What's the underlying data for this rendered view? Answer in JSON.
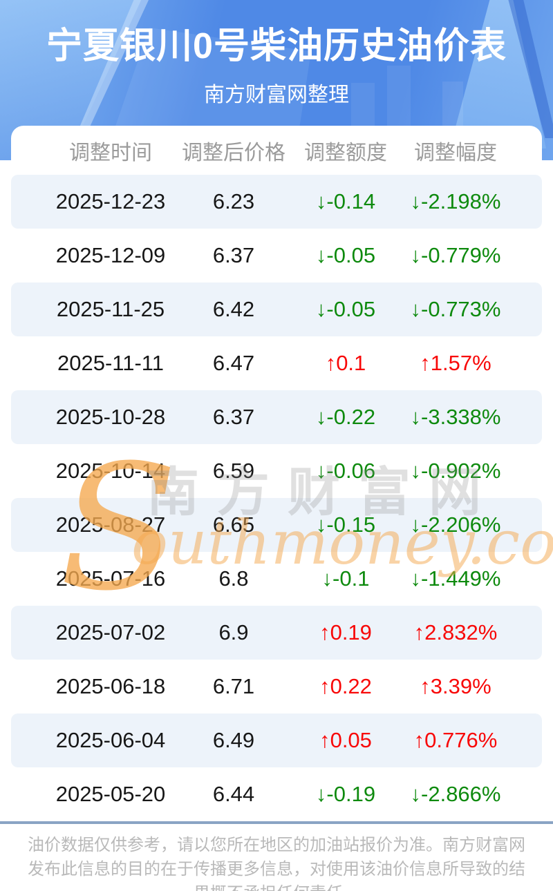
{
  "header": {
    "title": "宁夏银川0号柴油历史油价表",
    "subtitle": "南方财富网整理"
  },
  "table": {
    "columns": [
      "调整时间",
      "调整后价格",
      "调整额度",
      "调整幅度"
    ],
    "rows": [
      {
        "date": "2025-12-23",
        "price": "6.23",
        "amount": "-0.14",
        "percent": "-2.198%",
        "direction": "down"
      },
      {
        "date": "2025-12-09",
        "price": "6.37",
        "amount": "-0.05",
        "percent": "-0.779%",
        "direction": "down"
      },
      {
        "date": "2025-11-25",
        "price": "6.42",
        "amount": "-0.05",
        "percent": "-0.773%",
        "direction": "down"
      },
      {
        "date": "2025-11-11",
        "price": "6.47",
        "amount": "0.1",
        "percent": "1.57%",
        "direction": "up"
      },
      {
        "date": "2025-10-28",
        "price": "6.37",
        "amount": "-0.22",
        "percent": "-3.338%",
        "direction": "down"
      },
      {
        "date": "2025-10-14",
        "price": "6.59",
        "amount": "-0.06",
        "percent": "-0.902%",
        "direction": "down"
      },
      {
        "date": "2025-08-27",
        "price": "6.65",
        "amount": "-0.15",
        "percent": "-2.206%",
        "direction": "down"
      },
      {
        "date": "2025-07-16",
        "price": "6.8",
        "amount": "-0.1",
        "percent": "-1.449%",
        "direction": "down"
      },
      {
        "date": "2025-07-02",
        "price": "6.9",
        "amount": "0.19",
        "percent": "2.832%",
        "direction": "up"
      },
      {
        "date": "2025-06-18",
        "price": "6.71",
        "amount": "0.22",
        "percent": "3.39%",
        "direction": "up"
      },
      {
        "date": "2025-06-04",
        "price": "6.49",
        "amount": "0.05",
        "percent": "0.776%",
        "direction": "up"
      },
      {
        "date": "2025-05-20",
        "price": "6.44",
        "amount": "-0.19",
        "percent": "-2.866%",
        "direction": "down"
      }
    ]
  },
  "chart_data": {
    "type": "table",
    "title": "宁夏银川0号柴油历史油价表",
    "subtitle": "南方财富网整理",
    "columns": [
      "调整时间",
      "调整后价格",
      "调整额度",
      "调整幅度"
    ],
    "rows": [
      [
        "2025-12-23",
        "6.23",
        "↓-0.14",
        "↓-2.198%"
      ],
      [
        "2025-12-09",
        "6.37",
        "↓-0.05",
        "↓-0.779%"
      ],
      [
        "2025-11-25",
        "6.42",
        "↓-0.05",
        "↓-0.773%"
      ],
      [
        "2025-11-11",
        "6.47",
        "↑0.1",
        "↑1.57%"
      ],
      [
        "2025-10-28",
        "6.37",
        "↓-0.22",
        "↓-3.338%"
      ],
      [
        "2025-10-14",
        "6.59",
        "↓-0.06",
        "↓-0.902%"
      ],
      [
        "2025-08-27",
        "6.65",
        "↓-0.15",
        "↓-2.206%"
      ],
      [
        "2025-07-16",
        "6.8",
        "↓-0.1",
        "↓-1.449%"
      ],
      [
        "2025-07-02",
        "6.9",
        "↑0.19",
        "↑2.832%"
      ],
      [
        "2025-06-18",
        "6.71",
        "↑0.22",
        "↑3.39%"
      ],
      [
        "2025-06-04",
        "6.49",
        "↑0.05",
        "↑0.776%"
      ],
      [
        "2025-05-20",
        "6.44",
        "↓-0.19",
        "↓-2.866%"
      ]
    ]
  },
  "icons": {
    "up_arrow": "↑",
    "down_arrow": "↓"
  },
  "watermark": {
    "s_swoosh": "S",
    "site_cn": "南方财富网",
    "domain": "outhmoney.com"
  },
  "footer": {
    "line1": "油价数据仅供参考，请以您所在地区的加油站报价为准。南方财富网",
    "line2": "发布此信息的目的在于传播更多信息，对使用该油价信息所导致的结",
    "line3": "果概不承担任何责任。"
  },
  "colors": {
    "hero_blue": "#4f89e6",
    "hero_light_blue": "#85b7f2",
    "up_red": "#f80808",
    "down_green": "#0e8a0e",
    "row_alt_bg": "#edf3fa",
    "header_text": "#9b9b9b",
    "body_text": "#171717",
    "divider_blue": "#8aa4c4",
    "footer_text": "#b9b9b9",
    "watermark_orange": "#f5a94f",
    "watermark_gray": "#8a8a8a"
  }
}
